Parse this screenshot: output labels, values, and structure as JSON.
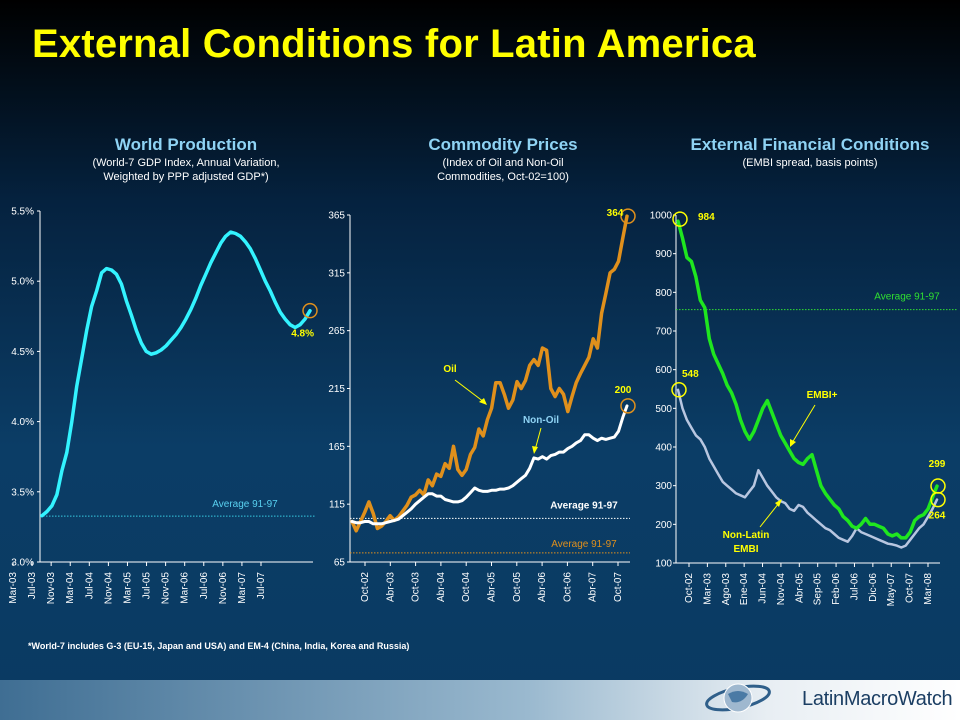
{
  "slide_title": "External Conditions for Latin America",
  "footnote": "*World-7 includes G-3 (EU-15, Japan and USA) and EM-4 (China, India, Korea and Russia)",
  "logo_text": "LatinMacroWatch",
  "colors": {
    "title": "#ffff00",
    "light_blue": "#8fd3f4",
    "world_line": "#33f3ff",
    "oil": "#e0901c",
    "nonoil": "#ffffff",
    "embi_plus": "#1fe61f",
    "non_latin": "#b8c6e0",
    "avg_green": "#30e030",
    "axis": "#ffffff"
  },
  "chart_data": [
    {
      "type": "line",
      "title": "World Production",
      "subtitle_lines": [
        "(World-7 GDP Index, Annual Variation,",
        "Weighted by PPP adjusted GDP*)"
      ],
      "y_ticks": [
        "5.5%",
        "5.0%",
        "4.5%",
        "4.0%",
        "3.5%",
        "3.0%"
      ],
      "ylim": [
        3.0,
        5.5
      ],
      "x_ticks": [
        "Mar-03",
        "Jul-03",
        "Nov-03",
        "Mar-04",
        "Jul-04",
        "Nov-04",
        "Mar-05",
        "Jul-05",
        "Nov-05",
        "Mar-06",
        "Jul-06",
        "Nov-06",
        "Mar-07",
        "Jul-07"
      ],
      "series": [
        {
          "values": [
            3.33,
            3.36,
            3.4,
            3.48,
            3.65,
            3.78,
            4.0,
            4.25,
            4.45,
            4.65,
            4.82,
            4.93,
            5.06,
            5.09,
            5.08,
            5.05,
            4.98,
            4.86,
            4.76,
            4.65,
            4.56,
            4.5,
            4.48,
            4.49,
            4.51,
            4.54,
            4.58,
            4.62,
            4.67,
            4.73,
            4.8,
            4.88,
            4.97,
            5.05,
            5.13,
            5.2,
            5.27,
            5.32,
            5.35,
            5.34,
            5.32,
            5.28,
            5.23,
            5.16,
            5.08,
            5.0,
            4.93,
            4.85,
            4.78,
            4.73,
            4.69,
            4.67,
            4.69,
            4.73,
            4.79
          ]
        }
      ],
      "average": {
        "label": "Average 91-97",
        "value": 3.32
      },
      "end_label": "4.8%"
    },
    {
      "type": "line",
      "title": "Commodity Prices",
      "subtitle_lines": [
        "(Index of Oil and Non-Oil",
        "Commodities, Oct-02=100)"
      ],
      "y_ticks": [
        "365",
        "315",
        "265",
        "215",
        "165",
        "115",
        "65"
      ],
      "ylim": [
        65,
        365
      ],
      "x_ticks": [
        "Oct-02",
        "Abr-03",
        "Oct-03",
        "Abr-04",
        "Oct-04",
        "Abr-05",
        "Oct-05",
        "Abr-06",
        "Oct-06",
        "Abr-07",
        "Oct-07"
      ],
      "series": [
        {
          "name": "Oil",
          "values": [
            100,
            92,
            100,
            108,
            117,
            107,
            94,
            96,
            100,
            105,
            101,
            104,
            109,
            114,
            121,
            123,
            127,
            123,
            136,
            131,
            141,
            139,
            150,
            146,
            165,
            145,
            140,
            145,
            158,
            164,
            180,
            174,
            188,
            198,
            220,
            220,
            210,
            198,
            205,
            221,
            215,
            222,
            235,
            240,
            235,
            250,
            248,
            215,
            208,
            215,
            210,
            195,
            208,
            220,
            228,
            235,
            242,
            258,
            250,
            280,
            297,
            315,
            318,
            325,
            345,
            364
          ]
        },
        {
          "name": "Non-Oil",
          "values": [
            100,
            99,
            99,
            100,
            100,
            98,
            98,
            98,
            99,
            100,
            101,
            102,
            105,
            108,
            111,
            115,
            118,
            121,
            124,
            124,
            122,
            122,
            119,
            118,
            117,
            117,
            118,
            121,
            125,
            129,
            127,
            126,
            126,
            127,
            127,
            128,
            128,
            129,
            131,
            134,
            137,
            140,
            146,
            155,
            154,
            156,
            154,
            157,
            158,
            160,
            160,
            163,
            165,
            168,
            170,
            175,
            175,
            172,
            170,
            172,
            171,
            172,
            173,
            178,
            190,
            200
          ]
        }
      ],
      "averages": [
        {
          "label": "Average 91-97",
          "value": 107,
          "series": "Non-Oil"
        },
        {
          "label": "Average 91-97",
          "value": 72,
          "series": "Oil"
        }
      ],
      "end_labels": [
        "364",
        "200"
      ],
      "annotations": [
        "Oil",
        "Non-Oil"
      ]
    },
    {
      "type": "line",
      "title": "External Financial Conditions",
      "subtitle_lines": [
        "(EMBI spread, basis points)"
      ],
      "y_ticks": [
        "1000",
        "900",
        "800",
        "700",
        "600",
        "500",
        "400",
        "300",
        "200",
        "100"
      ],
      "ylim": [
        100,
        1000
      ],
      "x_ticks": [
        "Oct-02",
        "Mar-03",
        "Ago-03",
        "Ene-04",
        "Jun-04",
        "Nov-04",
        "Abr-05",
        "Sep-05",
        "Feb-06",
        "Jul-06",
        "Dic-06",
        "May-07",
        "Oct-07",
        "Mar-08"
      ],
      "series": [
        {
          "name": "EMBI+",
          "values": [
            984,
            940,
            890,
            880,
            840,
            780,
            760,
            680,
            640,
            615,
            590,
            560,
            540,
            510,
            470,
            440,
            420,
            440,
            470,
            500,
            520,
            490,
            460,
            430,
            410,
            390,
            370,
            360,
            355,
            370,
            380,
            340,
            300,
            280,
            265,
            250,
            240,
            220,
            210,
            195,
            190,
            200,
            215,
            200,
            200,
            195,
            190,
            175,
            170,
            175,
            165,
            165,
            180,
            210,
            220,
            225,
            240,
            270,
            299
          ]
        },
        {
          "name": "Non-Latin EMBI",
          "values": [
            548,
            500,
            470,
            450,
            430,
            420,
            400,
            370,
            350,
            330,
            310,
            300,
            290,
            280,
            275,
            270,
            285,
            300,
            340,
            320,
            300,
            285,
            270,
            260,
            255,
            240,
            235,
            250,
            245,
            230,
            220,
            210,
            200,
            190,
            185,
            175,
            165,
            160,
            155,
            170,
            190,
            180,
            175,
            170,
            165,
            160,
            155,
            150,
            148,
            145,
            140,
            145,
            160,
            175,
            190,
            200,
            220,
            240,
            264
          ]
        }
      ],
      "average": {
        "label": "Average 91-97",
        "value": 750
      },
      "start_labels": [
        "984",
        "548"
      ],
      "end_labels": [
        "299",
        "264"
      ],
      "annotations": [
        "EMBI+",
        "Non-Latin",
        "EMBI"
      ]
    }
  ]
}
